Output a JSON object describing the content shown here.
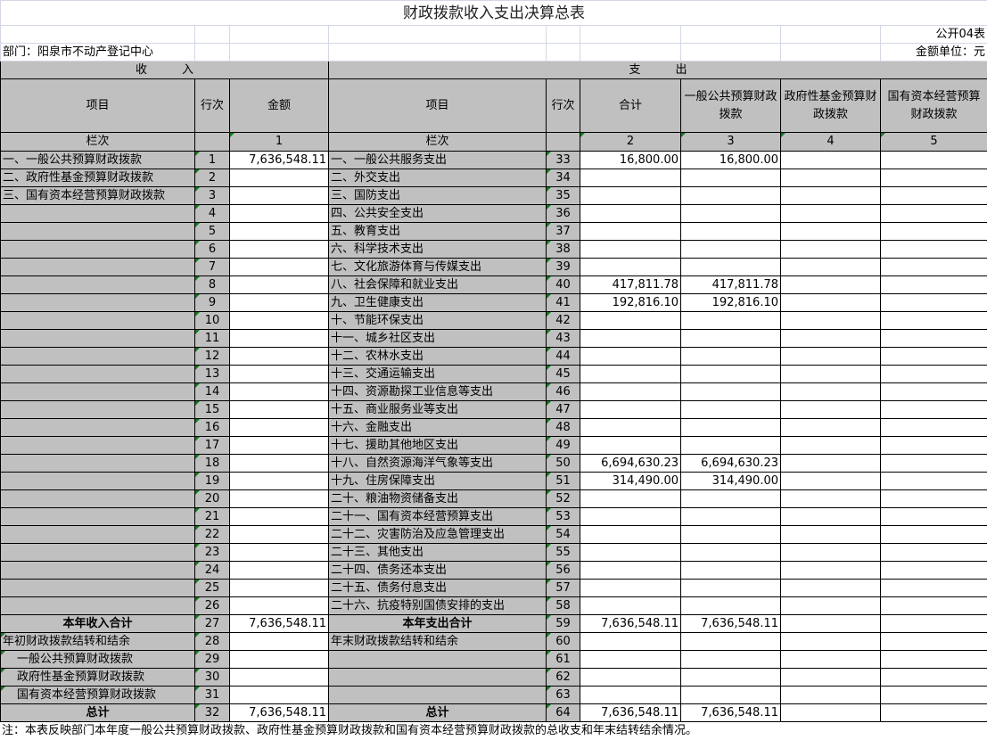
{
  "title": "财政拨款收入支出决算总表",
  "form_no": "公开04表",
  "department": "部门：阳泉市不动产登记中心",
  "unit": "金额单位：元",
  "headers": {
    "income": "收　　　入",
    "expense": "支　　　出",
    "item": "项目",
    "line_no": "行次",
    "amount": "金额",
    "total": "合计",
    "general": "一般公共预算财政拨款",
    "gov_fund": "政府性基金预算财政拨款",
    "state_capital": "国有资本经营预算财政拨款",
    "col_label": "栏次",
    "c1": "1",
    "c2": "2",
    "c3": "3",
    "c4": "4",
    "c5": "5"
  },
  "rows": [
    [
      "一、一般公共预算财政拨款",
      "1",
      "7,636,548.11",
      "一、一般公共服务支出",
      "33",
      "16,800.00",
      "16,800.00",
      "",
      ""
    ],
    [
      "二、政府性基金预算财政拨款",
      "2",
      "",
      "二、外交支出",
      "34",
      "",
      "",
      "",
      ""
    ],
    [
      "三、国有资本经营预算财政拨款",
      "3",
      "",
      "三、国防支出",
      "35",
      "",
      "",
      "",
      ""
    ],
    [
      "",
      "4",
      "",
      "四、公共安全支出",
      "36",
      "",
      "",
      "",
      ""
    ],
    [
      "",
      "5",
      "",
      "五、教育支出",
      "37",
      "",
      "",
      "",
      ""
    ],
    [
      "",
      "6",
      "",
      "六、科学技术支出",
      "38",
      "",
      "",
      "",
      ""
    ],
    [
      "",
      "7",
      "",
      "七、文化旅游体育与传媒支出",
      "39",
      "",
      "",
      "",
      ""
    ],
    [
      "",
      "8",
      "",
      "八、社会保障和就业支出",
      "40",
      "417,811.78",
      "417,811.78",
      "",
      ""
    ],
    [
      "",
      "9",
      "",
      "九、卫生健康支出",
      "41",
      "192,816.10",
      "192,816.10",
      "",
      ""
    ],
    [
      "",
      "10",
      "",
      "十、节能环保支出",
      "42",
      "",
      "",
      "",
      ""
    ],
    [
      "",
      "11",
      "",
      "十一、城乡社区支出",
      "43",
      "",
      "",
      "",
      ""
    ],
    [
      "",
      "12",
      "",
      "十二、农林水支出",
      "44",
      "",
      "",
      "",
      ""
    ],
    [
      "",
      "13",
      "",
      "十三、交通运输支出",
      "45",
      "",
      "",
      "",
      ""
    ],
    [
      "",
      "14",
      "",
      "十四、资源勘探工业信息等支出",
      "46",
      "",
      "",
      "",
      ""
    ],
    [
      "",
      "15",
      "",
      "十五、商业服务业等支出",
      "47",
      "",
      "",
      "",
      ""
    ],
    [
      "",
      "16",
      "",
      "十六、金融支出",
      "48",
      "",
      "",
      "",
      ""
    ],
    [
      "",
      "17",
      "",
      "十七、援助其他地区支出",
      "49",
      "",
      "",
      "",
      ""
    ],
    [
      "",
      "18",
      "",
      "十八、自然资源海洋气象等支出",
      "50",
      "6,694,630.23",
      "6,694,630.23",
      "",
      ""
    ],
    [
      "",
      "19",
      "",
      "十九、住房保障支出",
      "51",
      "314,490.00",
      "314,490.00",
      "",
      ""
    ],
    [
      "",
      "20",
      "",
      "二十、粮油物资储备支出",
      "52",
      "",
      "",
      "",
      ""
    ],
    [
      "",
      "21",
      "",
      "二十一、国有资本经营预算支出",
      "53",
      "",
      "",
      "",
      ""
    ],
    [
      "",
      "22",
      "",
      "二十二、灾害防治及应急管理支出",
      "54",
      "",
      "",
      "",
      ""
    ],
    [
      "",
      "23",
      "",
      "二十三、其他支出",
      "55",
      "",
      "",
      "",
      ""
    ],
    [
      "",
      "24",
      "",
      "二十四、债务还本支出",
      "56",
      "",
      "",
      "",
      ""
    ],
    [
      "",
      "25",
      "",
      "二十五、债务付息支出",
      "57",
      "",
      "",
      "",
      ""
    ],
    [
      "",
      "26",
      "",
      "二十六、抗疫特别国债安排的支出",
      "58",
      "",
      "",
      "",
      ""
    ],
    [
      "本年收入合计",
      "27",
      "7,636,548.11",
      "本年支出合计",
      "59",
      "7,636,548.11",
      "7,636,548.11",
      "",
      ""
    ],
    [
      "年初财政拨款结转和结余",
      "28",
      "",
      "年末财政拨款结转和结余",
      "60",
      "",
      "",
      "",
      ""
    ],
    [
      "一般公共预算财政拨款",
      "29",
      "",
      "",
      "61",
      "",
      "",
      "",
      ""
    ],
    [
      "政府性基金预算财政拨款",
      "30",
      "",
      "",
      "62",
      "",
      "",
      "",
      ""
    ],
    [
      "国有资本经营预算财政拨款",
      "31",
      "",
      "",
      "63",
      "",
      "",
      "",
      ""
    ],
    [
      "总计",
      "32",
      "7,636,548.11",
      "总计",
      "64",
      "7,636,548.11",
      "7,636,548.11",
      "",
      ""
    ]
  ],
  "note": "注：本表反映部门本年度一般公共预算财政拨款、政府性基金预算财政拨款和国有资本经营预算财政拨款的总收支和年末结转结余情况。"
}
